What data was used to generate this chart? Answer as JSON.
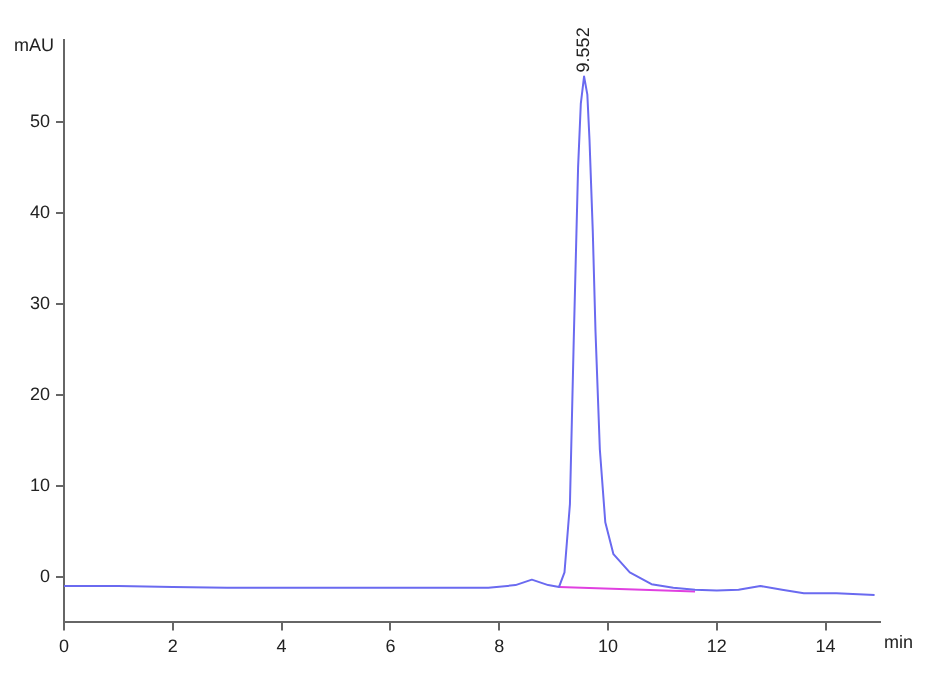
{
  "chart_data": {
    "type": "line",
    "xlabel": "min",
    "ylabel": "mAU",
    "x": [
      0,
      1,
      2,
      3,
      5,
      7,
      7.8,
      8.3,
      8.6,
      8.9,
      9.1,
      9.2,
      9.3,
      9.37,
      9.45,
      9.5,
      9.56,
      9.62,
      9.66,
      9.72,
      9.77,
      9.85,
      9.95,
      10.1,
      10.4,
      10.8,
      11.2,
      11.6,
      12,
      12.4,
      12.8,
      13.2,
      13.6,
      14.2,
      14.9
    ],
    "series": [
      {
        "color": "#6a6af0",
        "values": [
          -1.0,
          -1.0,
          -1.1,
          -1.2,
          -1.2,
          -1.2,
          -1.2,
          -0.9,
          -0.3,
          -0.9,
          -1.1,
          0.5,
          8,
          26,
          45,
          52,
          55,
          53,
          48,
          38,
          27,
          14,
          6,
          2.5,
          0.5,
          -0.8,
          -1.2,
          -1.4,
          -1.5,
          -1.4,
          -1.0,
          -1.4,
          -1.8,
          -1.8,
          -2.0
        ]
      },
      {
        "color": "#e040e0",
        "x": [
          9.1,
          11.6
        ],
        "values": [
          -1.1,
          -1.6
        ]
      }
    ],
    "xlim": [
      0,
      15
    ],
    "xticks": [
      0,
      2,
      4,
      6,
      8,
      10,
      12,
      14
    ],
    "ylim": [
      -5,
      59
    ],
    "yticks": [
      0,
      10,
      20,
      30,
      40,
      50
    ],
    "grid": false,
    "legend": false,
    "marker": "none",
    "line_style": "solid",
    "annotations": [
      {
        "text": "9.552",
        "x": 9.56,
        "y": 55
      }
    ]
  }
}
